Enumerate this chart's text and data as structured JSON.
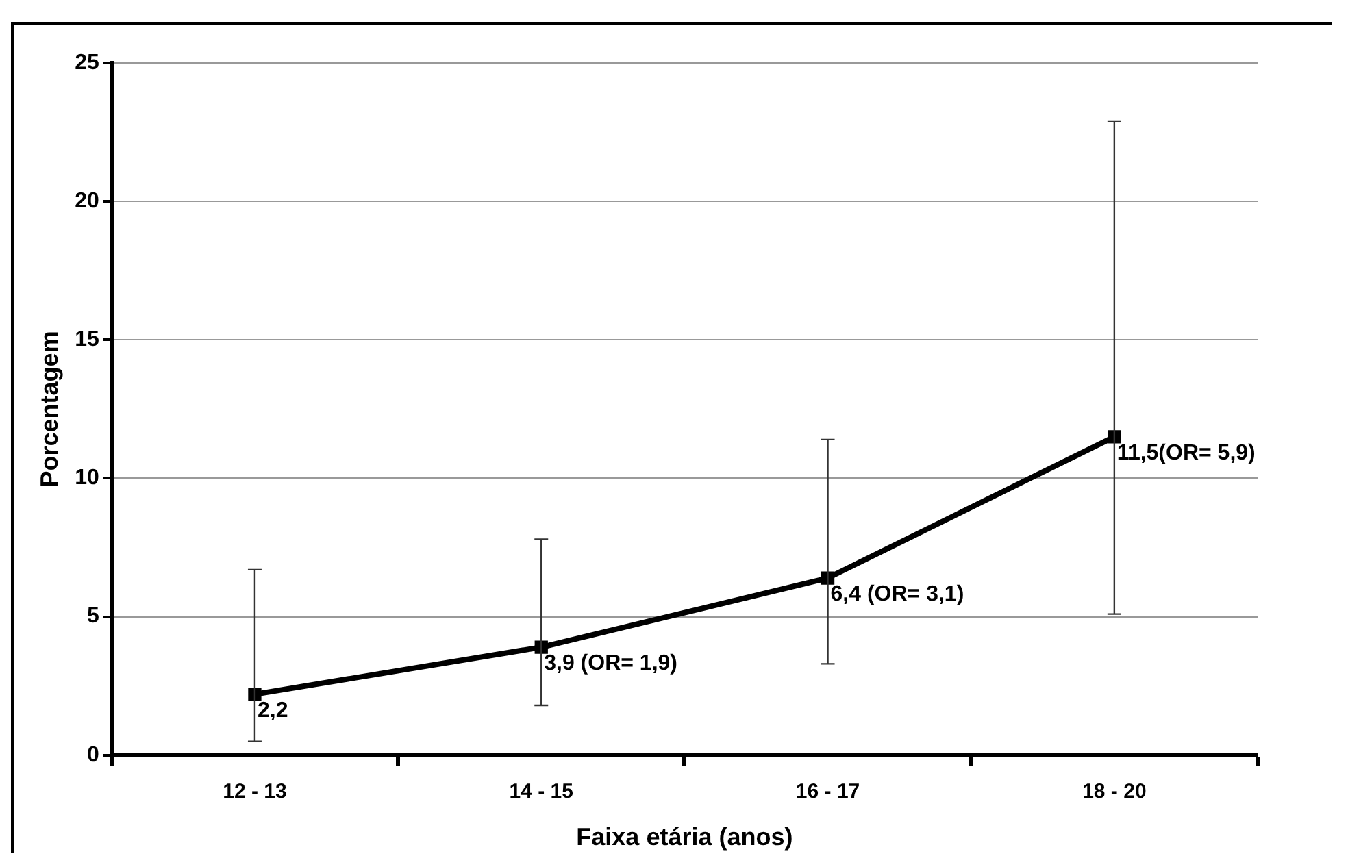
{
  "chart_data": {
    "type": "line",
    "xlabel": "Faixa etária (anos)",
    "ylabel": "Porcentagem",
    "categories": [
      "12 - 13",
      "14 - 15",
      "16 - 17",
      "18 - 20"
    ],
    "series": [
      {
        "color": "#000000",
        "values": [
          2.2,
          3.9,
          6.4,
          11.5
        ],
        "errors": [
          [
            0.5,
            6.7
          ],
          [
            1.8,
            7.8
          ],
          [
            3.3,
            11.4
          ],
          [
            5.1,
            22.9
          ]
        ],
        "value_labels": [
          "2,2",
          "3,9 (OR= 1,9)",
          "6,4 (OR= 3,1)",
          "11,5(OR= 5,9)"
        ]
      }
    ],
    "ylim": [
      0,
      25
    ],
    "yticks": [
      0,
      5,
      10,
      15,
      20,
      25
    ],
    "grid": "y",
    "legend": false,
    "marker": "square",
    "line_style": "solid"
  }
}
